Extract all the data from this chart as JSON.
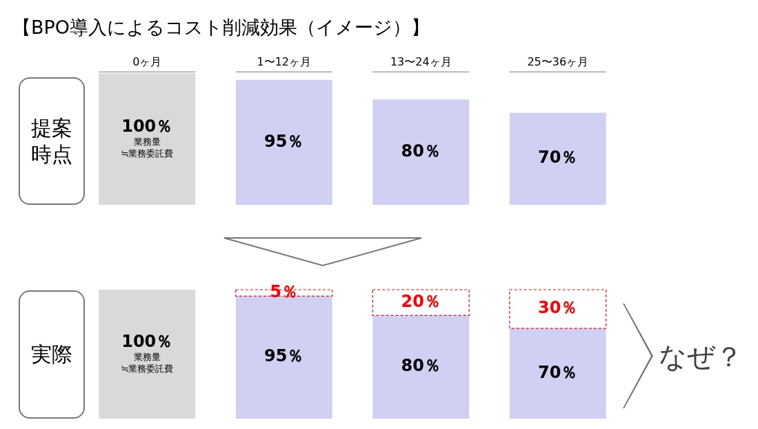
{
  "chart_data": [
    {
      "type": "bar",
      "title": "【BPO導入によるコスト削減効果（イメージ）】",
      "ylabel": "提案時点",
      "categories": [
        "0ヶ月",
        "1〜12ヶ月",
        "13〜24ヶ月",
        "25〜36ヶ月"
      ],
      "values": [
        100,
        95,
        80,
        70
      ],
      "colors": [
        "#d9d9d9",
        "#d0d0f2",
        "#d0d0f2",
        "#d0d0f2"
      ],
      "value_labels": [
        "100％",
        "95％",
        "80％",
        "70％"
      ],
      "ylim": [
        0,
        100
      ],
      "grid": false,
      "legend": false,
      "annotations": [
        "業務量",
        "≒業務委託費"
      ]
    },
    {
      "type": "bar",
      "ylabel": "実際",
      "categories": [
        null,
        null,
        null,
        null
      ],
      "stacked": true,
      "tick_labels": false,
      "series": [
        {
          "colors": [
            "#d9d9d9",
            "#d0d0f2",
            "#d0d0f2",
            "#d0d0f2"
          ],
          "values": [
            100,
            95,
            80,
            70
          ],
          "value_labels": [
            "100％",
            "95％",
            "80％",
            "70％"
          ]
        },
        {
          "color": "#ff0000",
          "line_style": "dashed",
          "values": [
            null,
            5,
            20,
            30
          ],
          "value_labels": [
            null,
            "5％",
            "20％",
            "30％"
          ]
        }
      ],
      "ylim": [
        0,
        100
      ],
      "grid": false,
      "legend": false,
      "annotations": [
        "業務量",
        "≒業務委託費",
        "なぜ？"
      ]
    }
  ]
}
